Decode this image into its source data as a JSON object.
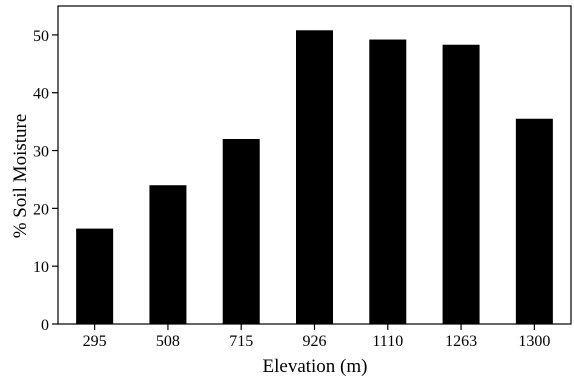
{
  "chart_data": {
    "type": "bar",
    "title": "",
    "xlabel": "Elevation (m)",
    "ylabel": "% Soil Moisture",
    "categories": [
      "295",
      "508",
      "715",
      "926",
      "1110",
      "1263",
      "1300"
    ],
    "values": [
      16.5,
      24.0,
      32.0,
      50.8,
      49.2,
      48.3,
      35.5
    ],
    "ylim": [
      0,
      55
    ],
    "yticks": [
      "0",
      "10",
      "20",
      "30",
      "40",
      "50"
    ],
    "bar_color": "#000000",
    "grid": false,
    "legend": "none"
  }
}
